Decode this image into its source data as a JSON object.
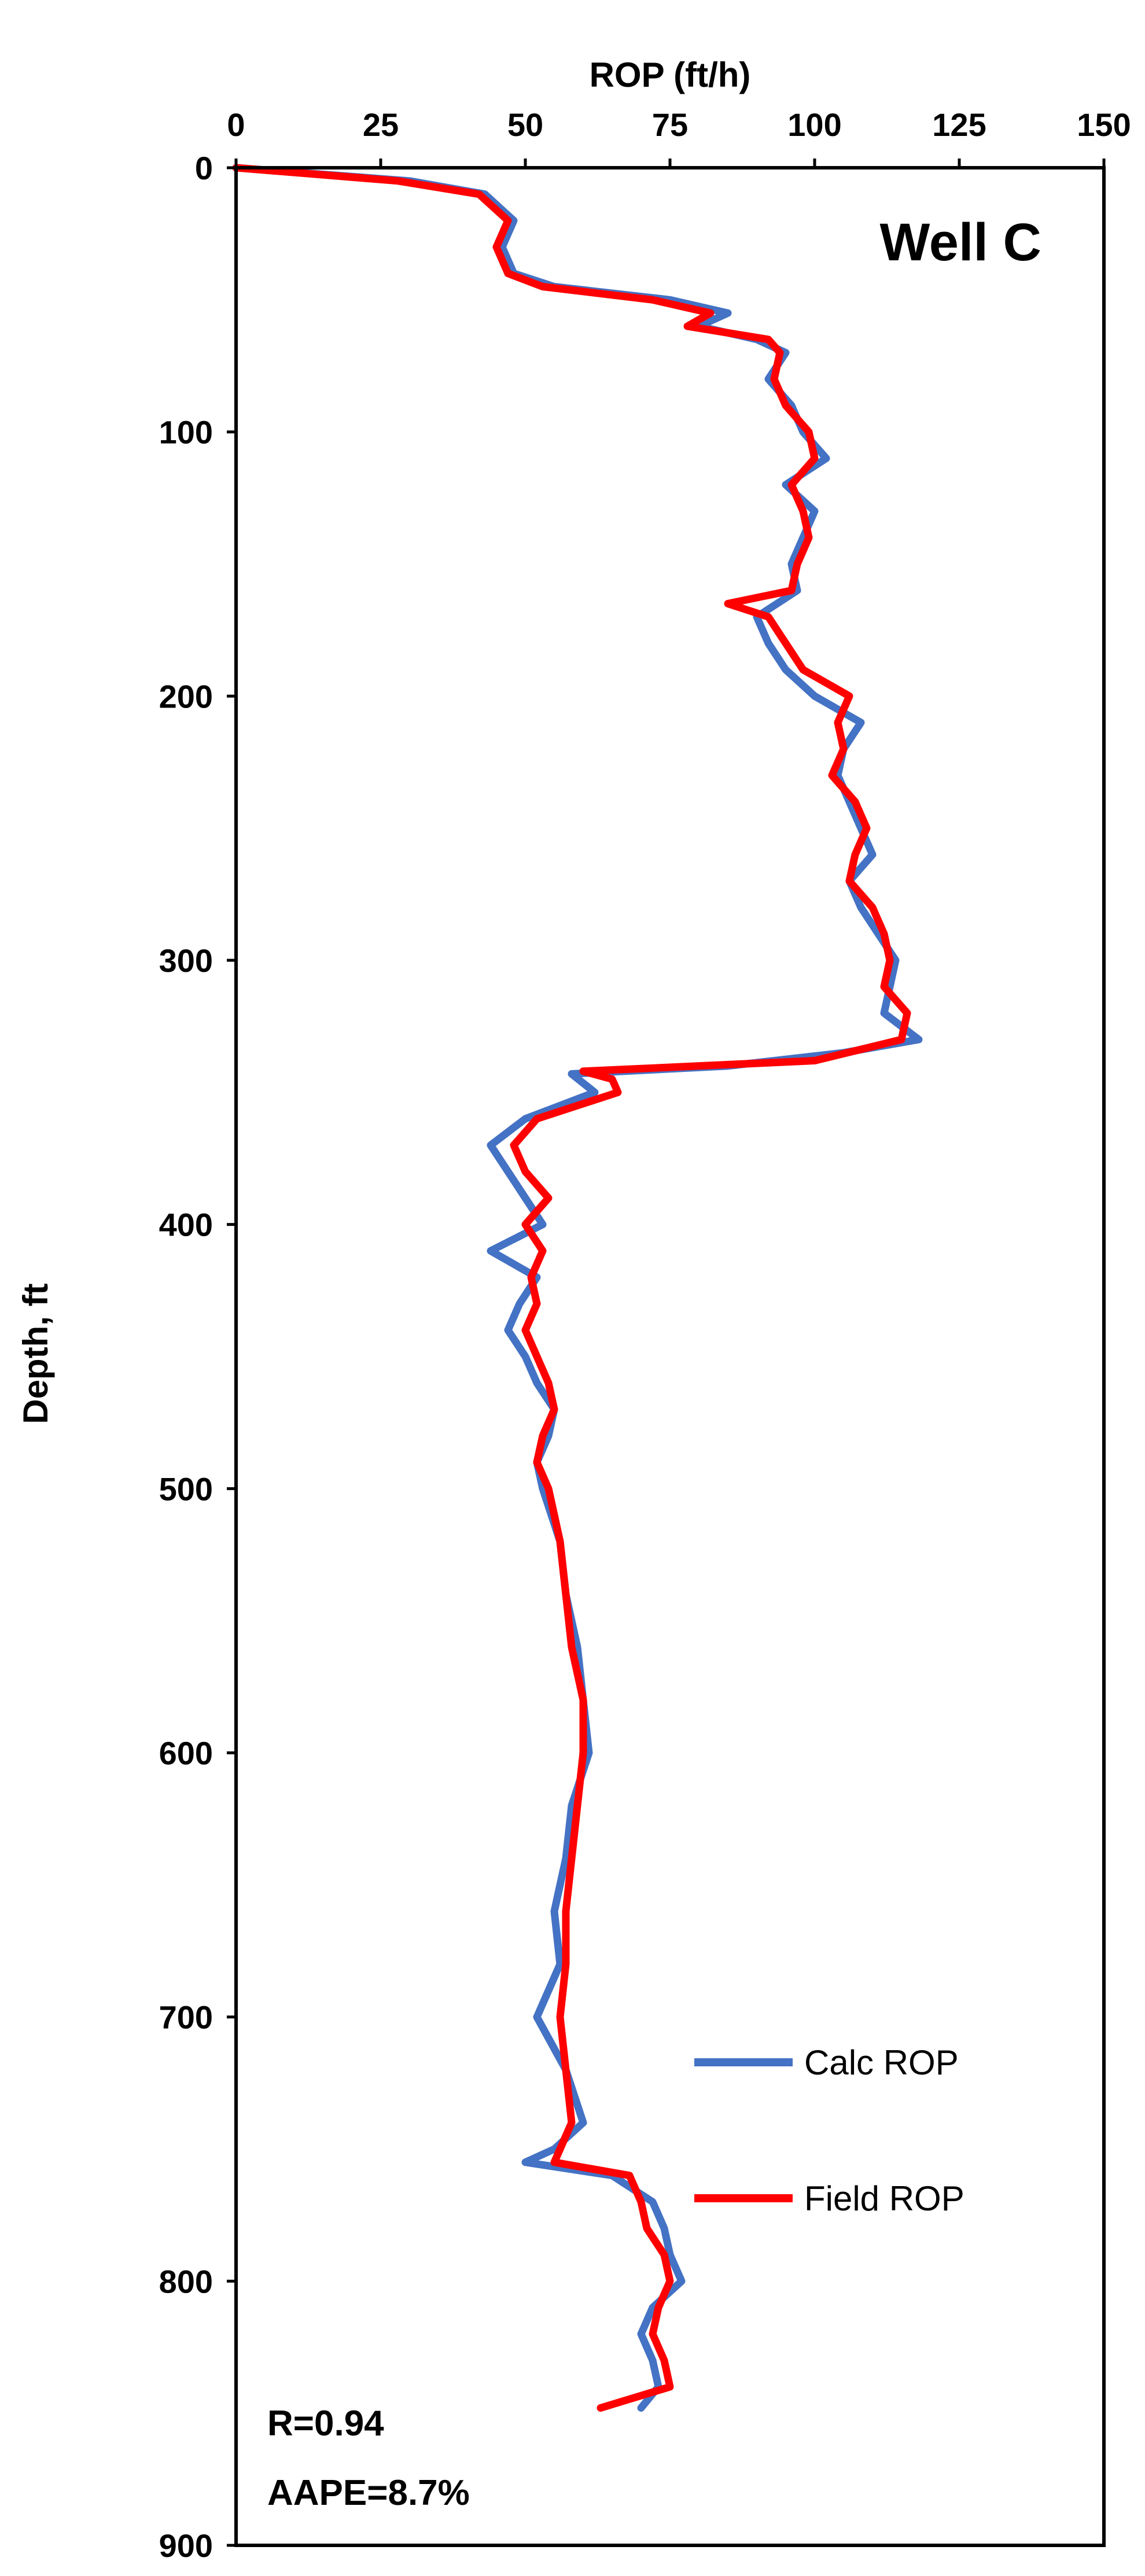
{
  "chart_data": {
    "type": "line",
    "title": "",
    "well_label": "Well C",
    "xlabel": "ROP (ft/h)",
    "ylabel": "Depth, ft",
    "xlim": [
      0,
      150
    ],
    "ylim": [
      0,
      900
    ],
    "y_inverted": true,
    "x_axis_position": "top",
    "xticks": [
      "0",
      "25",
      "50",
      "75",
      "100",
      "125",
      "150"
    ],
    "yticks": [
      "0",
      "100",
      "200",
      "300",
      "400",
      "500",
      "600",
      "700",
      "800",
      "900"
    ],
    "grid": false,
    "legend_position": "lower-right",
    "series": [
      {
        "name": "Calc ROP",
        "color": "#4472C4",
        "depth": [
          0,
          5,
          10,
          20,
          30,
          40,
          45,
          50,
          55,
          60,
          65,
          70,
          80,
          90,
          100,
          110,
          120,
          130,
          140,
          150,
          160,
          170,
          180,
          190,
          200,
          210,
          220,
          230,
          240,
          250,
          260,
          270,
          280,
          290,
          300,
          310,
          320,
          330,
          335,
          340,
          343,
          350,
          360,
          370,
          380,
          390,
          400,
          410,
          420,
          430,
          440,
          450,
          460,
          470,
          480,
          490,
          500,
          520,
          540,
          560,
          580,
          600,
          620,
          640,
          660,
          680,
          700,
          720,
          740,
          750,
          755,
          760,
          770,
          780,
          790,
          800,
          810,
          820,
          830,
          840,
          848
        ],
        "rop": [
          0,
          30,
          43,
          48,
          46,
          48,
          55,
          75,
          85,
          80,
          90,
          95,
          92,
          96,
          98,
          102,
          95,
          100,
          98,
          96,
          97,
          90,
          92,
          95,
          100,
          108,
          105,
          104,
          106,
          108,
          110,
          106,
          108,
          111,
          114,
          113,
          112,
          118,
          105,
          85,
          58,
          62,
          50,
          44,
          47,
          50,
          53,
          44,
          52,
          49,
          47,
          50,
          52,
          55,
          54,
          52,
          53,
          56,
          57,
          59,
          60,
          61,
          58,
          57,
          55,
          56,
          52,
          57,
          60,
          55,
          50,
          65,
          72,
          74,
          75,
          77,
          72,
          70,
          72,
          73,
          70
        ]
      },
      {
        "name": "Field ROP",
        "color": "#FF0000",
        "depth": [
          0,
          5,
          10,
          20,
          30,
          40,
          45,
          50,
          55,
          60,
          65,
          70,
          80,
          90,
          100,
          110,
          120,
          130,
          140,
          150,
          160,
          165,
          170,
          180,
          190,
          200,
          210,
          220,
          230,
          240,
          250,
          260,
          270,
          280,
          290,
          300,
          310,
          320,
          330,
          338,
          342,
          345,
          350,
          360,
          370,
          380,
          390,
          400,
          410,
          420,
          430,
          440,
          450,
          460,
          470,
          480,
          490,
          500,
          520,
          540,
          560,
          580,
          600,
          620,
          640,
          660,
          680,
          700,
          720,
          740,
          750,
          755,
          760,
          770,
          780,
          790,
          800,
          810,
          820,
          830,
          840,
          848
        ],
        "rop": [
          0,
          28,
          42,
          47,
          45,
          47,
          53,
          72,
          82,
          78,
          92,
          94,
          93,
          95,
          99,
          100,
          96,
          98,
          99,
          97,
          96,
          85,
          92,
          95,
          98,
          106,
          104,
          105,
          103,
          107,
          109,
          107,
          106,
          110,
          112,
          113,
          112,
          116,
          115,
          100,
          60,
          65,
          66,
          52,
          48,
          50,
          54,
          50,
          53,
          51,
          52,
          50,
          52,
          54,
          55,
          53,
          52,
          54,
          56,
          57,
          58,
          60,
          60,
          59,
          58,
          57,
          57,
          56,
          57,
          58,
          56,
          55,
          68,
          70,
          71,
          74,
          75,
          73,
          72,
          74,
          75,
          63
        ]
      }
    ],
    "annotations": [
      "R=0.94",
      "AAPE=8.7%"
    ]
  }
}
